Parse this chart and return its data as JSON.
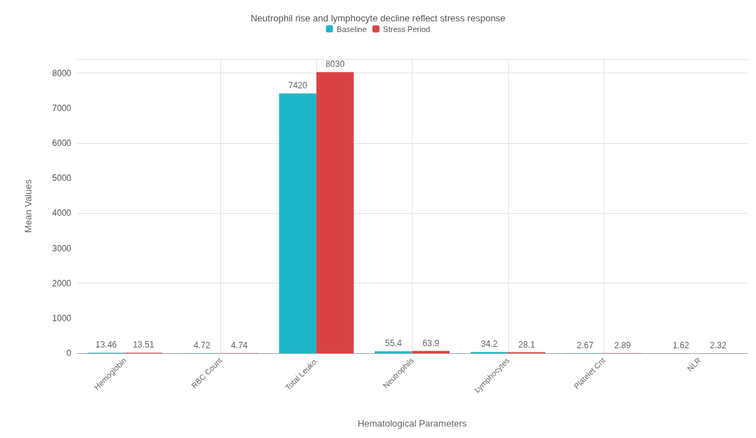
{
  "chart_data": {
    "type": "bar",
    "title": "Neutrophil rise and lymphocyte decline reflect stress response",
    "xlabel": "Hematological Parameters",
    "ylabel": "Mean Values",
    "categories": [
      "Hemoglobin",
      "RBC Count",
      "Total Leuko.",
      "Neutrophils",
      "Lymphocytes",
      "Platelet Cnt",
      "NLR"
    ],
    "series": [
      {
        "name": "Baseline",
        "color": "#1fb5c9",
        "values": [
          13.46,
          4.72,
          7420,
          55.4,
          34.2,
          2.67,
          1.62
        ]
      },
      {
        "name": "Stress Period",
        "color": "#d94343",
        "values": [
          13.51,
          4.74,
          8030,
          63.9,
          28.1,
          2.89,
          2.32
        ]
      }
    ],
    "ylim": [
      0,
      8400
    ],
    "yticks": [
      0,
      1000,
      2000,
      3000,
      4000,
      5000,
      6000,
      7000,
      8000
    ],
    "grid": true,
    "legend": "top",
    "data_labels": true
  }
}
